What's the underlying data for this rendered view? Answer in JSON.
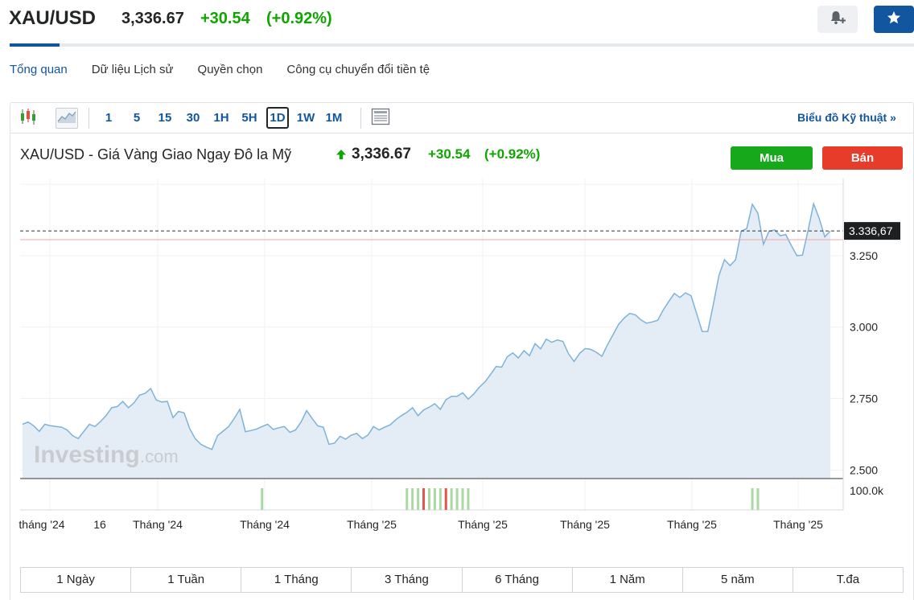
{
  "header": {
    "symbol": "XAU/USD",
    "price": "3,336.67",
    "change": "+30.54",
    "change_pct": "(+0.92%)"
  },
  "tabs": [
    "Tổng quan",
    "Dữ liệu Lịch sử",
    "Quyền chọn",
    "Công cụ chuyển đổi tiền tệ"
  ],
  "toolbar": {
    "timeframes": [
      "1",
      "5",
      "15",
      "30",
      "1H",
      "5H",
      "1D",
      "1W",
      "1M"
    ],
    "active_timeframe": "1D",
    "tech_link": "Biểu đồ Kỹ thuật »"
  },
  "chart_header": {
    "title": "XAU/USD - Giá Vàng Giao Ngay Đô la Mỹ",
    "price": "3,336.67",
    "change": "+30.54",
    "change_pct": "(+0.92%)",
    "buy_label": "Mua",
    "sell_label": "Bán"
  },
  "watermark": {
    "brand": "Investing",
    "suffix": ".com"
  },
  "colors": {
    "accent": "#1256a0",
    "up": "#0ea600",
    "buy": "#17a81c",
    "sell": "#e83c2a",
    "line": "#7fb2d9",
    "area": "#e4edf6"
  },
  "chart_data": {
    "type": "area",
    "series": [
      {
        "values": [
          2660,
          2668,
          2655,
          2635,
          2660,
          2655,
          2652,
          2650,
          2640,
          2620,
          2610,
          2635,
          2660,
          2652,
          2670,
          2690,
          2718,
          2722,
          2740,
          2718,
          2735,
          2762,
          2768,
          2785,
          2745,
          2738,
          2740,
          2683,
          2705,
          2700,
          2645,
          2610,
          2590,
          2580,
          2572,
          2620,
          2636,
          2652,
          2680,
          2712,
          2634,
          2638,
          2643,
          2652,
          2660,
          2642,
          2648,
          2652,
          2632,
          2640,
          2668,
          2708,
          2680,
          2654,
          2650,
          2590,
          2594,
          2618,
          2608,
          2622,
          2628,
          2610,
          2622,
          2652,
          2640,
          2650,
          2658,
          2676,
          2690,
          2702,
          2718,
          2690,
          2710,
          2720,
          2732,
          2712,
          2746,
          2758,
          2758,
          2770,
          2748,
          2766,
          2790,
          2808,
          2834,
          2862,
          2860,
          2896,
          2910,
          2892,
          2918,
          2900,
          2942,
          2924,
          2958,
          2947,
          2955,
          2950,
          2907,
          2880,
          2908,
          2925,
          2922,
          2912,
          2898,
          2938,
          2974,
          3010,
          3032,
          3048,
          3043,
          3025,
          3014,
          3018,
          3024,
          3060,
          3090,
          3118,
          3104,
          3120,
          3110,
          3048,
          2985,
          2985,
          3080,
          3180,
          3236,
          3215,
          3236,
          3336,
          3345,
          3430,
          3398,
          3290,
          3336,
          3340,
          3320,
          3324,
          3286,
          3250,
          3252,
          3338,
          3432,
          3380,
          3316,
          3336.67
        ]
      }
    ],
    "y_ticks": [
      "3.250",
      "3.000",
      "2.750",
      "2.500"
    ],
    "x_ticks": [
      "tháng '24",
      "16",
      "Tháng '24",
      "Tháng '24",
      "Tháng '25",
      "Tháng '25",
      "Tháng '25",
      "Tháng '25",
      "Tháng '25"
    ],
    "last_price_label": "3.336,67",
    "last_price": 3336.67,
    "reference_price": 3306.13,
    "y_range": [
      2470,
      3520
    ],
    "volume_label": "100.0k",
    "volume_bars": [
      {
        "idx": 43,
        "color": "green"
      },
      {
        "idx": 69,
        "color": "green"
      },
      {
        "idx": 70,
        "color": "green"
      },
      {
        "idx": 71,
        "color": "green"
      },
      {
        "idx": 72,
        "color": "red"
      },
      {
        "idx": 73,
        "color": "green"
      },
      {
        "idx": 74,
        "color": "green"
      },
      {
        "idx": 75,
        "color": "green"
      },
      {
        "idx": 76,
        "color": "red"
      },
      {
        "idx": 77,
        "color": "green"
      },
      {
        "idx": 78,
        "color": "green"
      },
      {
        "idx": 79,
        "color": "green"
      },
      {
        "idx": 80,
        "color": "green"
      },
      {
        "idx": 131,
        "color": "green"
      },
      {
        "idx": 132,
        "color": "green"
      }
    ]
  },
  "ranges": [
    "1 Ngày",
    "1 Tuần",
    "1 Tháng",
    "3 Tháng",
    "6 Tháng",
    "1 Năm",
    "5 năm",
    "T.đa"
  ]
}
